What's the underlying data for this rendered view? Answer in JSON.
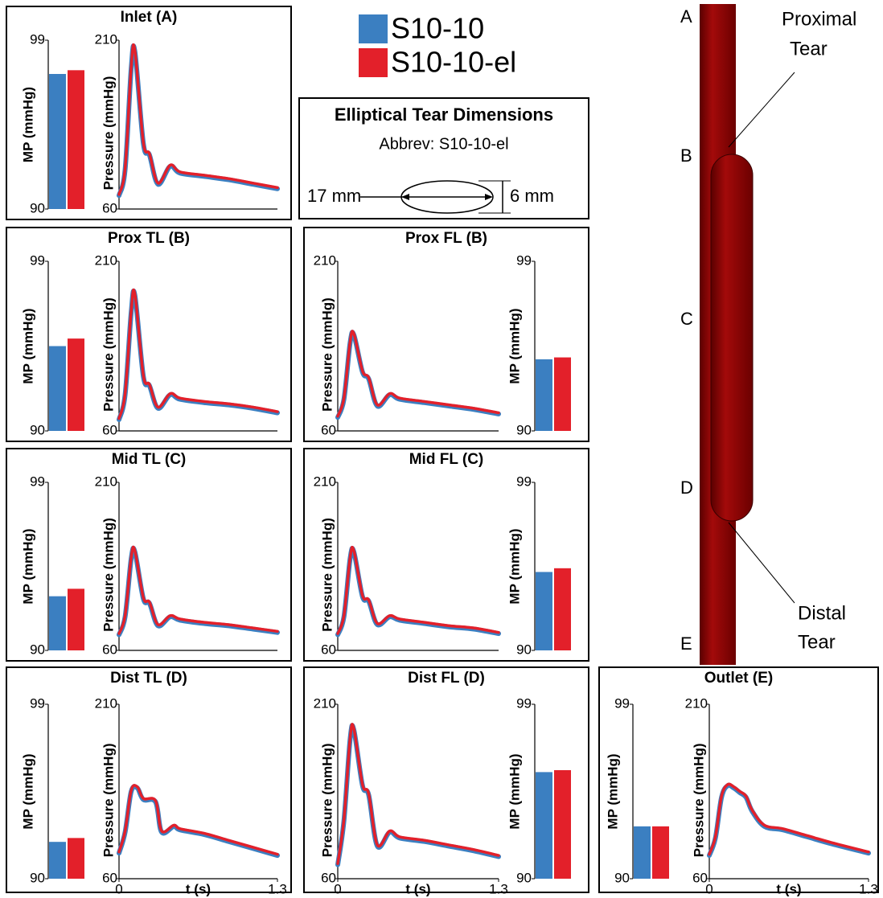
{
  "legend": [
    {
      "name": "S10-10",
      "color": "#3b7fc1"
    },
    {
      "name": "S10-10-el",
      "color": "#e3202a"
    }
  ],
  "tear_box": {
    "title": "Elliptical Tear Dimensions",
    "abbrev": "Abbrev: S10-10-el",
    "length": "17 mm",
    "width": "6 mm"
  },
  "diagram": {
    "locations": [
      "A",
      "B",
      "C",
      "D",
      "E"
    ],
    "proximal_tear": [
      "Proximal",
      "Tear"
    ],
    "distal_tear": [
      "Distal",
      "Tear"
    ]
  },
  "chart_data": [
    {
      "type": "bar",
      "ylabel": "MP (mmHg)",
      "ylim": [
        90,
        99
      ],
      "yticks": [
        90,
        99
      ],
      "values": [
        97.2,
        97.4
      ]
    },
    {
      "type": "line",
      "title": "Inlet (A)",
      "ylabel": "Pressure (mmHg)",
      "xlim": [
        0,
        1.3
      ],
      "ylim": [
        60,
        210
      ],
      "yticks": [
        60,
        210
      ],
      "x": [
        0,
        0.05,
        0.1,
        0.13,
        0.2,
        0.25,
        0.32,
        0.42,
        0.5,
        0.7,
        0.9,
        1.1,
        1.3
      ],
      "series": [
        {
          "values": [
            72,
            95,
            185,
            200,
            118,
            108,
            82,
            98,
            92,
            89,
            86,
            82,
            78
          ]
        },
        {
          "values": [
            73,
            96,
            186,
            201,
            119,
            109,
            83,
            99,
            93,
            90,
            87,
            83,
            79
          ]
        }
      ]
    },
    {
      "type": "bar",
      "ylabel": "MP (mmHg)",
      "ylim": [
        90,
        99
      ],
      "yticks": [
        90,
        99
      ],
      "values": [
        94.5,
        94.9
      ]
    },
    {
      "type": "line",
      "title": "Prox TL (B)",
      "ylabel": "Pressure (mmHg)",
      "xlim": [
        0,
        1.3
      ],
      "ylim": [
        60,
        210
      ],
      "yticks": [
        60,
        210
      ],
      "x": [
        0,
        0.05,
        0.1,
        0.13,
        0.2,
        0.25,
        0.32,
        0.42,
        0.5,
        0.7,
        0.9,
        1.1,
        1.3
      ],
      "series": [
        {
          "values": [
            70,
            92,
            165,
            180,
            108,
            100,
            80,
            92,
            88,
            85,
            83,
            80,
            76
          ]
        },
        {
          "values": [
            71,
            93,
            166,
            181,
            109,
            101,
            81,
            93,
            89,
            86,
            84,
            81,
            77
          ]
        }
      ]
    },
    {
      "type": "line",
      "title": "Prox FL (B)",
      "ylabel": "Pressure (mmHg)",
      "xlim": [
        0,
        1.3
      ],
      "ylim": [
        60,
        210
      ],
      "yticks": [
        60,
        210
      ],
      "x": [
        0,
        0.05,
        0.1,
        0.13,
        0.2,
        0.25,
        0.32,
        0.42,
        0.5,
        0.7,
        0.9,
        1.1,
        1.3
      ],
      "series": [
        {
          "values": [
            72,
            88,
            138,
            145,
            112,
            106,
            82,
            92,
            88,
            85,
            82,
            79,
            75
          ]
        },
        {
          "values": [
            73,
            89,
            139,
            146,
            113,
            107,
            83,
            93,
            89,
            86,
            83,
            80,
            76
          ]
        }
      ]
    },
    {
      "type": "bar",
      "ylabel": "MP (mmHg)",
      "ylim": [
        90,
        99
      ],
      "yticks": [
        90,
        99
      ],
      "values": [
        93.8,
        93.9
      ]
    },
    {
      "type": "bar",
      "ylabel": "MP (mmHg)",
      "ylim": [
        90,
        99
      ],
      "yticks": [
        90,
        99
      ],
      "values": [
        92.9,
        93.3
      ]
    },
    {
      "type": "line",
      "title": "Mid TL (C)",
      "ylabel": "Pressure (mmHg)",
      "xlim": [
        0,
        1.3
      ],
      "ylim": [
        60,
        210
      ],
      "yticks": [
        60,
        210
      ],
      "x": [
        0,
        0.05,
        0.1,
        0.13,
        0.2,
        0.25,
        0.32,
        0.42,
        0.5,
        0.7,
        0.9,
        1.1,
        1.3
      ],
      "series": [
        {
          "values": [
            74,
            90,
            142,
            148,
            106,
            102,
            82,
            90,
            87,
            84,
            82,
            79,
            76
          ]
        },
        {
          "values": [
            75,
            91,
            143,
            149,
            107,
            103,
            83,
            91,
            88,
            85,
            83,
            80,
            77
          ]
        }
      ]
    },
    {
      "type": "line",
      "title": "Mid FL (C)",
      "ylabel": "Pressure (mmHg)",
      "xlim": [
        0,
        1.3
      ],
      "ylim": [
        60,
        210
      ],
      "yticks": [
        60,
        210
      ],
      "x": [
        0,
        0.05,
        0.1,
        0.13,
        0.2,
        0.25,
        0.32,
        0.42,
        0.5,
        0.7,
        0.9,
        1.1,
        1.3
      ],
      "series": [
        {
          "values": [
            74,
            90,
            142,
            148,
            108,
            104,
            83,
            90,
            87,
            84,
            81,
            79,
            75
          ]
        },
        {
          "values": [
            75,
            91,
            143,
            149,
            109,
            105,
            84,
            91,
            88,
            85,
            82,
            80,
            76
          ]
        }
      ]
    },
    {
      "type": "bar",
      "ylabel": "MP (mmHg)",
      "ylim": [
        90,
        99
      ],
      "yticks": [
        90,
        99
      ],
      "values": [
        94.2,
        94.4
      ]
    },
    {
      "type": "bar",
      "ylabel": "MP (mmHg)",
      "ylim": [
        90,
        99
      ],
      "yticks": [
        90,
        99
      ],
      "values": [
        91.9,
        92.1
      ]
    },
    {
      "type": "line",
      "title": "Dist TL (D)",
      "ylabel": "Pressure (mmHg)",
      "xlabel": "t (s)",
      "xlim": [
        0,
        1.3
      ],
      "xticks": [
        0,
        1.3
      ],
      "ylim": [
        60,
        210
      ],
      "yticks": [
        60,
        210
      ],
      "x": [
        0,
        0.05,
        0.1,
        0.15,
        0.2,
        0.3,
        0.35,
        0.45,
        0.5,
        0.7,
        0.9,
        1.1,
        1.3
      ],
      "series": [
        {
          "values": [
            82,
            100,
            135,
            138,
            128,
            126,
            100,
            105,
            102,
            98,
            92,
            86,
            80
          ]
        },
        {
          "values": [
            83,
            101,
            136,
            139,
            129,
            127,
            101,
            106,
            103,
            99,
            93,
            87,
            81
          ]
        }
      ]
    },
    {
      "type": "line",
      "title": "Dist FL (D)",
      "ylabel": "Pressure (mmHg)",
      "xlabel": "t (s)",
      "xlim": [
        0,
        1.3
      ],
      "xticks": [
        0,
        1.3
      ],
      "ylim": [
        60,
        210
      ],
      "yticks": [
        60,
        210
      ],
      "x": [
        0,
        0.05,
        0.1,
        0.13,
        0.2,
        0.25,
        0.32,
        0.42,
        0.5,
        0.7,
        0.9,
        1.1,
        1.3
      ],
      "series": [
        {
          "values": [
            72,
            110,
            180,
            188,
            140,
            132,
            88,
            100,
            95,
            92,
            88,
            84,
            79
          ]
        },
        {
          "values": [
            73,
            111,
            181,
            189,
            141,
            133,
            89,
            101,
            96,
            93,
            89,
            85,
            80
          ]
        }
      ]
    },
    {
      "type": "bar",
      "ylabel": "MP (mmHg)",
      "ylim": [
        90,
        99
      ],
      "yticks": [
        90,
        99
      ],
      "values": [
        95.5,
        95.6
      ]
    },
    {
      "type": "bar",
      "ylabel": "MP (mmHg)",
      "ylim": [
        90,
        99
      ],
      "yticks": [
        90,
        99
      ],
      "values": [
        92.7,
        92.7
      ]
    },
    {
      "type": "line",
      "title": "Outlet (E)",
      "ylabel": "Pressure (mmHg)",
      "xlabel": "t (s)",
      "xlim": [
        0,
        1.3
      ],
      "xticks": [
        0,
        1.3
      ],
      "ylim": [
        60,
        210
      ],
      "yticks": [
        60,
        210
      ],
      "x": [
        0,
        0.05,
        0.1,
        0.15,
        0.2,
        0.25,
        0.3,
        0.35,
        0.45,
        0.6,
        0.8,
        1.0,
        1.3
      ],
      "series": [
        {
          "values": [
            80,
            95,
            130,
            140,
            138,
            134,
            130,
            118,
            105,
            102,
            96,
            90,
            82
          ]
        },
        {
          "values": [
            81,
            96,
            131,
            141,
            139,
            135,
            131,
            119,
            106,
            103,
            97,
            91,
            83
          ]
        }
      ]
    }
  ]
}
